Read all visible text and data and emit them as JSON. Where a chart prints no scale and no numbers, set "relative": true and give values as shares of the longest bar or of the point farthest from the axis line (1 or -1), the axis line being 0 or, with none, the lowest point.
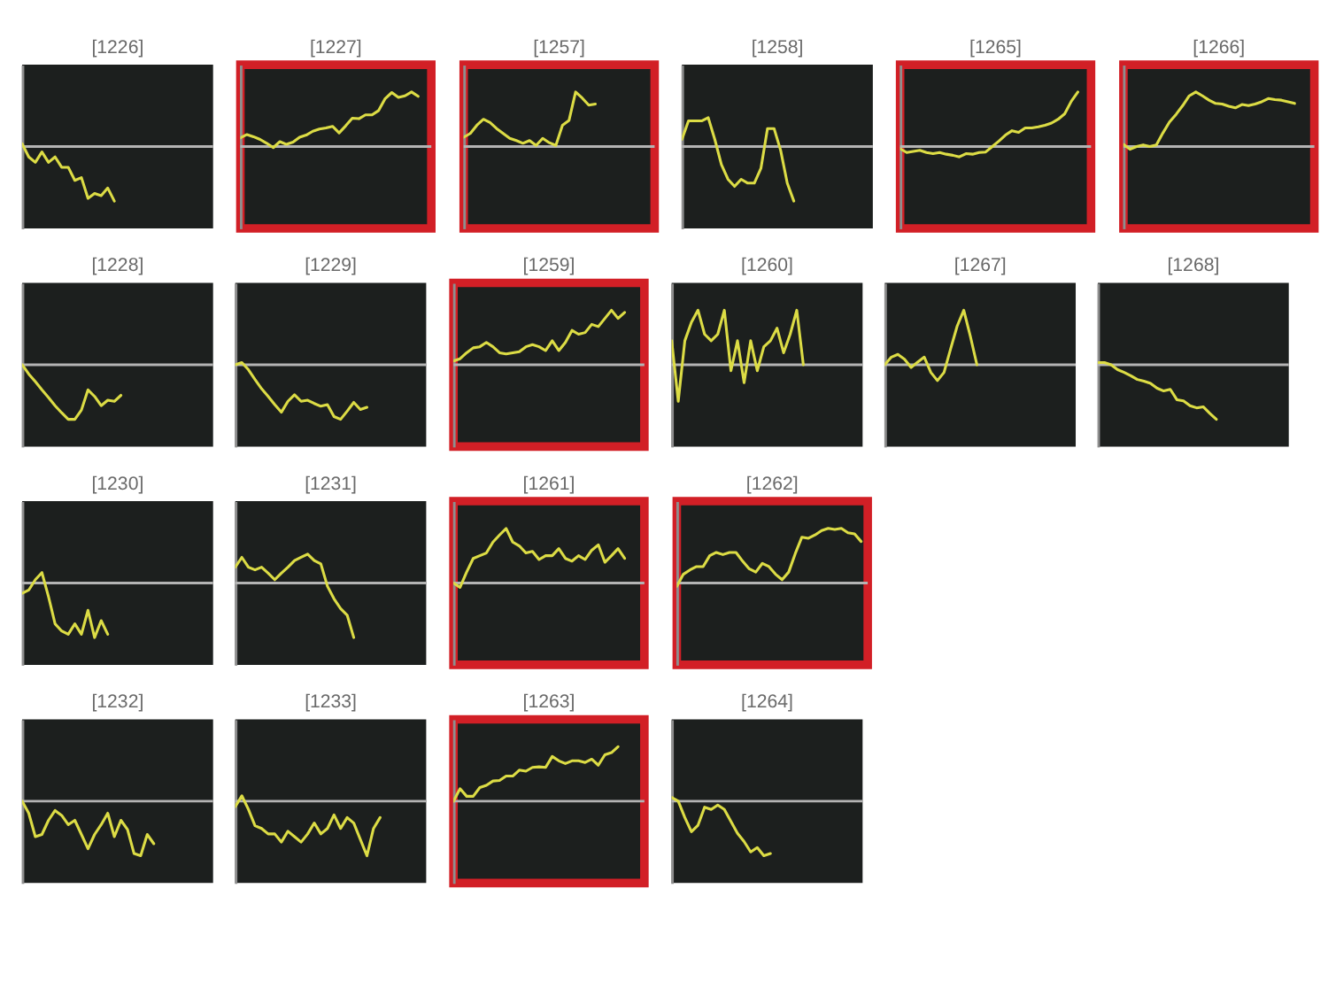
{
  "chart_data": [
    {
      "type": "line",
      "title": "[1226]",
      "relative": true,
      "categories": [
        null,
        null,
        null,
        null,
        null,
        null,
        null,
        null,
        null,
        null,
        null,
        null,
        null,
        null,
        null,
        null,
        null,
        null,
        null,
        null,
        null,
        null,
        null,
        null,
        null,
        null,
        null,
        null,
        null,
        null
      ],
      "series": [
        {
          "color": "#dcdc45",
          "values": [
            0.05,
            -0.19,
            -0.29,
            -0.1,
            -0.29,
            -0.19,
            -0.38,
            -0.38,
            -0.62,
            -0.57,
            -0.95,
            -0.86,
            -0.9,
            -0.76,
            -1.0,
            null,
            null,
            null,
            null,
            null,
            null,
            null,
            null,
            null,
            null,
            null,
            null,
            null,
            null,
            null
          ]
        }
      ]
    },
    {
      "type": "line",
      "title": "[1227]",
      "relative": true,
      "categories": [
        null,
        null,
        null,
        null,
        null,
        null,
        null,
        null,
        null,
        null,
        null,
        null,
        null,
        null,
        null,
        null,
        null,
        null,
        null,
        null,
        null,
        null,
        null,
        null,
        null,
        null,
        null,
        null,
        null,
        null
      ],
      "series": [
        {
          "color": "#dcdc45",
          "values": [
            0.16,
            0.22,
            0.18,
            0.13,
            0.06,
            -0.02,
            0.09,
            0.04,
            0.08,
            0.17,
            0.21,
            0.28,
            0.32,
            0.34,
            0.37,
            0.25,
            0.38,
            0.52,
            0.51,
            0.58,
            0.58,
            0.66,
            0.88,
            0.99,
            0.9,
            0.93,
            1.0,
            0.92,
            null,
            null
          ]
        }
      ]
    },
    {
      "type": "line",
      "title": "[1257]",
      "relative": true,
      "categories": [
        null,
        null,
        null,
        null,
        null,
        null,
        null,
        null,
        null,
        null,
        null,
        null,
        null,
        null,
        null,
        null,
        null,
        null,
        null,
        null,
        null,
        null,
        null,
        null,
        null,
        null,
        null,
        null,
        null,
        null
      ],
      "series": [
        {
          "color": "#dcdc45",
          "values": [
            0.17,
            0.24,
            0.39,
            0.5,
            0.44,
            0.33,
            0.24,
            0.15,
            0.11,
            0.06,
            0.11,
            0.02,
            0.15,
            0.07,
            0.02,
            0.39,
            0.48,
            1.0,
            0.89,
            0.76,
            0.78,
            null,
            null,
            null,
            null,
            null,
            null,
            null,
            null,
            null
          ]
        }
      ]
    },
    {
      "type": "line",
      "title": "[1258]",
      "relative": true,
      "categories": [
        null,
        null,
        null,
        null,
        null,
        null,
        null,
        null,
        null,
        null,
        null,
        null,
        null,
        null,
        null,
        null,
        null,
        null,
        null,
        null,
        null,
        null,
        null,
        null,
        null,
        null,
        null,
        null,
        null,
        null
      ],
      "series": [
        {
          "color": "#dcdc45",
          "values": [
            0.13,
            0.47,
            0.47,
            0.47,
            0.53,
            0.13,
            -0.33,
            -0.6,
            -0.73,
            -0.6,
            -0.67,
            -0.67,
            -0.4,
            0.33,
            0.33,
            -0.07,
            -0.67,
            -1.0,
            null,
            null,
            null,
            null,
            null,
            null,
            null,
            null,
            null,
            null,
            null,
            null
          ]
        }
      ]
    },
    {
      "type": "line",
      "title": "[1265]",
      "relative": true,
      "categories": [
        null,
        null,
        null,
        null,
        null,
        null,
        null,
        null,
        null,
        null,
        null,
        null,
        null,
        null,
        null,
        null,
        null,
        null,
        null,
        null,
        null,
        null,
        null,
        null,
        null,
        null,
        null,
        null,
        null,
        null
      ],
      "series": [
        {
          "color": "#dcdc45",
          "values": [
            -0.04,
            -0.11,
            -0.09,
            -0.07,
            -0.11,
            -0.13,
            -0.11,
            -0.14,
            -0.16,
            -0.19,
            -0.13,
            -0.14,
            -0.11,
            -0.1,
            0.0,
            0.1,
            0.21,
            0.29,
            0.26,
            0.34,
            0.34,
            0.36,
            0.39,
            0.43,
            0.5,
            0.6,
            0.83,
            1.0,
            null,
            null
          ]
        }
      ]
    },
    {
      "type": "line",
      "title": "[1266]",
      "relative": true,
      "categories": [
        null,
        null,
        null,
        null,
        null,
        null,
        null,
        null,
        null,
        null,
        null,
        null,
        null,
        null,
        null,
        null,
        null,
        null,
        null,
        null,
        null,
        null,
        null,
        null,
        null,
        null,
        null,
        null,
        null,
        null
      ],
      "series": [
        {
          "color": "#dcdc45",
          "values": [
            0.04,
            -0.05,
            0.0,
            0.03,
            0.0,
            0.03,
            0.25,
            0.45,
            0.59,
            0.75,
            0.93,
            1.0,
            0.93,
            0.85,
            0.79,
            0.78,
            0.74,
            0.71,
            0.77,
            0.75,
            0.78,
            0.82,
            0.88,
            0.86,
            0.85,
            0.82,
            0.79,
            null,
            null,
            null
          ]
        }
      ]
    },
    {
      "type": "line",
      "title": "[1228]",
      "relative": true,
      "categories": [
        null,
        null,
        null,
        null,
        null,
        null,
        null,
        null,
        null,
        null,
        null,
        null,
        null,
        null,
        null,
        null,
        null,
        null,
        null,
        null,
        null,
        null,
        null,
        null,
        null,
        null,
        null,
        null,
        null,
        null
      ],
      "series": [
        {
          "color": "#dcdc45",
          "values": [
            0,
            -0.17,
            -0.31,
            -0.46,
            -0.6,
            -0.75,
            -0.88,
            -1.0,
            -1.0,
            -0.83,
            -0.46,
            -0.58,
            -0.75,
            -0.65,
            -0.67,
            -0.56,
            null,
            null,
            null,
            null,
            null,
            null,
            null,
            null,
            null,
            null,
            null,
            null,
            null,
            null
          ]
        }
      ]
    },
    {
      "type": "line",
      "title": "[1229]",
      "relative": true,
      "categories": [
        null,
        null,
        null,
        null,
        null,
        null,
        null,
        null,
        null,
        null,
        null,
        null,
        null,
        null,
        null,
        null,
        null,
        null,
        null,
        null,
        null,
        null,
        null,
        null,
        null,
        null,
        null,
        null,
        null,
        null
      ],
      "series": [
        {
          "color": "#dcdc45",
          "values": [
            0,
            0.04,
            -0.09,
            -0.27,
            -0.44,
            -0.58,
            -0.73,
            -0.87,
            -0.67,
            -0.55,
            -0.67,
            -0.65,
            -0.71,
            -0.76,
            -0.73,
            -0.95,
            -1.0,
            -0.85,
            -0.69,
            -0.82,
            -0.78,
            null,
            null,
            null,
            null,
            null,
            null,
            null,
            null,
            null
          ]
        }
      ]
    },
    {
      "type": "line",
      "title": "[1259]",
      "relative": true,
      "categories": [
        null,
        null,
        null,
        null,
        null,
        null,
        null,
        null,
        null,
        null,
        null,
        null,
        null,
        null,
        null,
        null,
        null,
        null,
        null,
        null,
        null,
        null,
        null,
        null,
        null,
        null,
        null,
        null,
        null,
        null
      ],
      "series": [
        {
          "color": "#dcdc45",
          "values": [
            0.07,
            0.11,
            0.22,
            0.31,
            0.33,
            0.41,
            0.33,
            0.22,
            0.2,
            0.22,
            0.24,
            0.33,
            0.37,
            0.33,
            0.26,
            0.44,
            0.26,
            0.41,
            0.63,
            0.56,
            0.59,
            0.74,
            0.7,
            0.85,
            1.0,
            0.85,
            0.96,
            null,
            null,
            null
          ]
        }
      ]
    },
    {
      "type": "line",
      "title": "[1260]",
      "relative": true,
      "categories": [
        null,
        null,
        null,
        null,
        null,
        null,
        null,
        null,
        null,
        null,
        null,
        null,
        null,
        null,
        null,
        null,
        null,
        null,
        null,
        null,
        null,
        null,
        null,
        null,
        null,
        null,
        null,
        null,
        null,
        null
      ],
      "series": [
        {
          "color": "#dcdc45",
          "values": [
            0.44,
            -0.67,
            0.44,
            0.78,
            1.0,
            0.56,
            0.44,
            0.56,
            1.0,
            -0.11,
            0.44,
            -0.33,
            0.44,
            -0.11,
            0.33,
            0.44,
            0.67,
            0.22,
            0.56,
            1.0,
            0,
            null,
            null,
            null,
            null,
            null,
            null,
            null,
            null,
            null
          ]
        }
      ]
    },
    {
      "type": "line",
      "title": "[1267]",
      "relative": true,
      "categories": [
        null,
        null,
        null,
        null,
        null,
        null,
        null,
        null,
        null,
        null,
        null,
        null,
        null,
        null,
        null,
        null,
        null,
        null,
        null,
        null,
        null,
        null,
        null,
        null,
        null,
        null,
        null,
        null,
        null,
        null
      ],
      "series": [
        {
          "color": "#dcdc45",
          "values": [
            0,
            0.14,
            0.19,
            0.1,
            -0.05,
            0.05,
            0.14,
            -0.14,
            -0.29,
            -0.14,
            0.29,
            0.71,
            1.0,
            0.52,
            0,
            null,
            null,
            null,
            null,
            null,
            null,
            null,
            null,
            null,
            null,
            null,
            null,
            null,
            null,
            null
          ]
        }
      ]
    },
    {
      "type": "line",
      "title": "[1268]",
      "relative": true,
      "categories": [
        null,
        null,
        null,
        null,
        null,
        null,
        null,
        null,
        null,
        null,
        null,
        null,
        null,
        null,
        null,
        null,
        null,
        null,
        null,
        null,
        null,
        null,
        null,
        null,
        null,
        null,
        null,
        null,
        null,
        null
      ],
      "series": [
        {
          "color": "#dcdc45",
          "values": [
            0.04,
            0.04,
            0,
            -0.09,
            -0.14,
            -0.2,
            -0.27,
            -0.3,
            -0.34,
            -0.43,
            -0.48,
            -0.45,
            -0.64,
            -0.66,
            -0.75,
            -0.79,
            -0.77,
            -0.89,
            -1.0,
            null,
            null,
            null,
            null,
            null,
            null,
            null,
            null,
            null,
            null,
            null
          ]
        }
      ]
    },
    {
      "type": "line",
      "title": "[1230]",
      "relative": true,
      "categories": [
        null,
        null,
        null,
        null,
        null,
        null,
        null,
        null,
        null,
        null,
        null,
        null,
        null,
        null,
        null,
        null,
        null,
        null,
        null,
        null,
        null,
        null,
        null,
        null,
        null,
        null,
        null,
        null,
        null,
        null
      ],
      "series": [
        {
          "color": "#dcdc45",
          "values": [
            -0.19,
            -0.13,
            0.06,
            0.19,
            -0.25,
            -0.75,
            -0.88,
            -0.94,
            -0.75,
            -0.94,
            -0.5,
            -1.0,
            -0.69,
            -0.94,
            null,
            null,
            null,
            null,
            null,
            null,
            null,
            null,
            null,
            null,
            null,
            null,
            null,
            null,
            null,
            null
          ]
        }
      ]
    },
    {
      "type": "line",
      "title": "[1231]",
      "relative": true,
      "categories": [
        null,
        null,
        null,
        null,
        null,
        null,
        null,
        null,
        null,
        null,
        null,
        null,
        null,
        null,
        null,
        null,
        null,
        null,
        null,
        null,
        null,
        null,
        null,
        null,
        null,
        null,
        null,
        null,
        null,
        null
      ],
      "series": [
        {
          "color": "#dcdc45",
          "values": [
            0.29,
            0.47,
            0.29,
            0.24,
            0.29,
            0.18,
            0.06,
            0.18,
            0.29,
            0.41,
            0.47,
            0.53,
            0.41,
            0.35,
            -0.06,
            -0.29,
            -0.47,
            -0.59,
            -1.0,
            null,
            null,
            null,
            null,
            null,
            null,
            null,
            null,
            null,
            null,
            null
          ]
        }
      ]
    },
    {
      "type": "line",
      "title": "[1261]",
      "relative": true,
      "categories": [
        null,
        null,
        null,
        null,
        null,
        null,
        null,
        null,
        null,
        null,
        null,
        null,
        null,
        null,
        null,
        null,
        null,
        null,
        null,
        null,
        null,
        null,
        null,
        null,
        null,
        null,
        null,
        null,
        null,
        null
      ],
      "series": [
        {
          "color": "#dcdc45",
          "values": [
            0,
            -0.08,
            0.2,
            0.45,
            0.5,
            0.55,
            0.75,
            0.88,
            1.0,
            0.75,
            0.68,
            0.55,
            0.58,
            0.43,
            0.5,
            0.5,
            0.63,
            0.45,
            0.4,
            0.5,
            0.43,
            0.6,
            0.7,
            0.38,
            0.5,
            0.63,
            0.45,
            null,
            null,
            null
          ]
        }
      ]
    },
    {
      "type": "line",
      "title": "[1262]",
      "relative": true,
      "categories": [
        null,
        null,
        null,
        null,
        null,
        null,
        null,
        null,
        null,
        null,
        null,
        null,
        null,
        null,
        null,
        null,
        null,
        null,
        null,
        null,
        null,
        null,
        null,
        null,
        null,
        null,
        null,
        null,
        null,
        null
      ],
      "series": [
        {
          "color": "#dcdc45",
          "values": [
            -0.06,
            0.16,
            0.24,
            0.3,
            0.3,
            0.5,
            0.56,
            0.52,
            0.56,
            0.56,
            0.4,
            0.26,
            0.2,
            0.36,
            0.3,
            0.16,
            0.06,
            0.2,
            0.54,
            0.84,
            0.82,
            0.88,
            0.96,
            1.0,
            0.98,
            1.0,
            0.92,
            0.9,
            0.76,
            null
          ]
        }
      ]
    },
    {
      "type": "line",
      "title": "[1232]",
      "relative": true,
      "categories": [
        null,
        null,
        null,
        null,
        null,
        null,
        null,
        null,
        null,
        null,
        null,
        null,
        null,
        null,
        null,
        null,
        null,
        null,
        null,
        null,
        null,
        null,
        null,
        null,
        null,
        null,
        null,
        null,
        null,
        null
      ],
      "series": [
        {
          "color": "#dcdc45",
          "values": [
            0,
            -0.22,
            -0.65,
            -0.61,
            -0.35,
            -0.17,
            -0.26,
            -0.43,
            -0.35,
            -0.61,
            -0.87,
            -0.61,
            -0.43,
            -0.22,
            -0.65,
            -0.35,
            -0.52,
            -0.96,
            -1.0,
            -0.61,
            -0.78,
            null,
            null,
            null,
            null,
            null,
            null,
            null,
            null,
            null
          ]
        }
      ]
    },
    {
      "type": "line",
      "title": "[1233]",
      "relative": true,
      "categories": [
        null,
        null,
        null,
        null,
        null,
        null,
        null,
        null,
        null,
        null,
        null,
        null,
        null,
        null,
        null,
        null,
        null,
        null,
        null,
        null,
        null,
        null,
        null,
        null,
        null,
        null,
        null,
        null,
        null,
        null
      ],
      "series": [
        {
          "color": "#dcdc45",
          "values": [
            -0.1,
            0.1,
            -0.15,
            -0.45,
            -0.5,
            -0.6,
            -0.6,
            -0.75,
            -0.55,
            -0.65,
            -0.75,
            -0.6,
            -0.4,
            -0.6,
            -0.5,
            -0.25,
            -0.5,
            -0.3,
            -0.4,
            -0.7,
            -1.0,
            -0.5,
            -0.3,
            null,
            null,
            null,
            null,
            null,
            null,
            null
          ]
        }
      ]
    },
    {
      "type": "line",
      "title": "[1263]",
      "relative": true,
      "categories": [
        null,
        null,
        null,
        null,
        null,
        null,
        null,
        null,
        null,
        null,
        null,
        null,
        null,
        null,
        null,
        null,
        null,
        null,
        null,
        null,
        null,
        null,
        null,
        null,
        null,
        null,
        null,
        null,
        null,
        null
      ],
      "series": [
        {
          "color": "#dcdc45",
          "values": [
            0,
            0.23,
            0.09,
            0.09,
            0.25,
            0.29,
            0.37,
            0.38,
            0.46,
            0.46,
            0.57,
            0.55,
            0.62,
            0.63,
            0.62,
            0.82,
            0.74,
            0.69,
            0.74,
            0.74,
            0.71,
            0.77,
            0.66,
            0.85,
            0.89,
            1.0,
            null,
            null,
            null,
            null
          ]
        }
      ]
    },
    {
      "type": "line",
      "title": "[1264]",
      "relative": true,
      "categories": [
        null,
        null,
        null,
        null,
        null,
        null,
        null,
        null,
        null,
        null,
        null,
        null,
        null,
        null,
        null,
        null,
        null,
        null,
        null,
        null,
        null,
        null,
        null,
        null,
        null,
        null,
        null,
        null,
        null,
        null
      ],
      "series": [
        {
          "color": "#dcdc45",
          "values": [
            0.07,
            0,
            -0.3,
            -0.56,
            -0.44,
            -0.11,
            -0.15,
            -0.07,
            -0.15,
            -0.37,
            -0.59,
            -0.74,
            -0.93,
            -0.85,
            -1.0,
            -0.96,
            null,
            null,
            null,
            null,
            null,
            null,
            null,
            null,
            null,
            null,
            null,
            null,
            null,
            null
          ]
        }
      ]
    }
  ]
}
